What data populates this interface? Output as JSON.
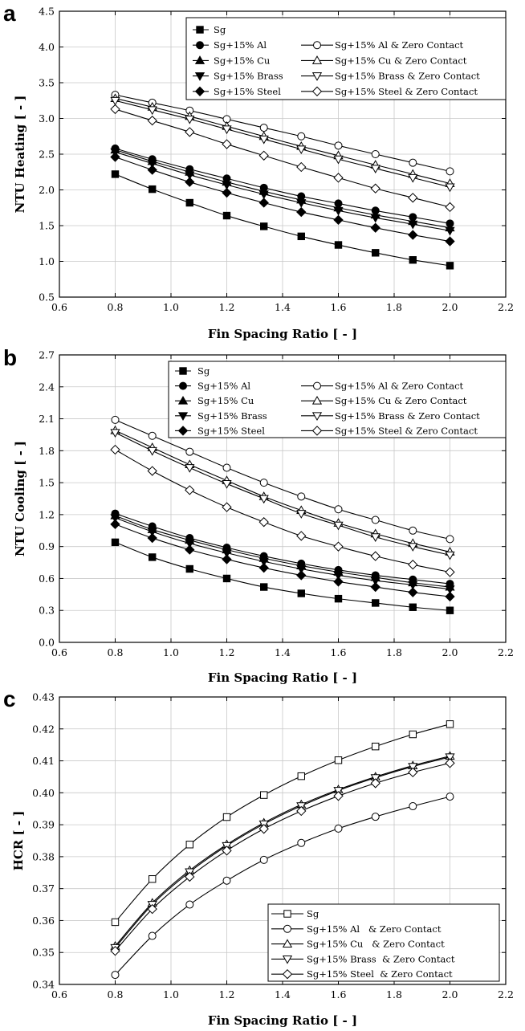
{
  "chart_data": [
    {
      "type": "line",
      "panel": "a",
      "xlabel": "Fin Spacing Ratio [ - ]",
      "ylabel": "NTU Heating [ - ]",
      "xlim": [
        0.6,
        2.2
      ],
      "ylim": [
        0.5,
        4.5
      ],
      "xticks": [
        "0.6",
        "0.8",
        "1.0",
        "1.2",
        "1.4",
        "1.6",
        "1.8",
        "2.0",
        "2.2"
      ],
      "yticks": [
        "0.5",
        "1.0",
        "1.5",
        "2.0",
        "2.5",
        "3.0",
        "3.5",
        "4.0",
        "4.5"
      ],
      "grid": true,
      "legend_position": "top-right",
      "x": [
        0.8,
        0.933,
        1.067,
        1.2,
        1.333,
        1.467,
        1.6,
        1.733,
        1.867,
        2.0
      ],
      "series": [
        {
          "name": "Sg",
          "marker": "square-filled",
          "values": [
            2.22,
            2.01,
            1.82,
            1.64,
            1.49,
            1.35,
            1.23,
            1.12,
            1.02,
            0.94
          ]
        },
        {
          "name": "Sg+15% Al",
          "marker": "circle-filled",
          "values": [
            2.58,
            2.43,
            2.29,
            2.16,
            2.03,
            1.91,
            1.81,
            1.71,
            1.62,
            1.53
          ]
        },
        {
          "name": "Sg+15% Cu",
          "marker": "triangle-up-filled",
          "values": [
            2.56,
            2.4,
            2.25,
            2.11,
            1.98,
            1.86,
            1.75,
            1.65,
            1.56,
            1.47
          ]
        },
        {
          "name": "Sg+15% Brass",
          "marker": "triangle-down-filled",
          "values": [
            2.53,
            2.37,
            2.21,
            2.07,
            1.94,
            1.82,
            1.71,
            1.61,
            1.52,
            1.43
          ]
        },
        {
          "name": "Sg+15% Steel",
          "marker": "diamond-filled",
          "values": [
            2.46,
            2.28,
            2.11,
            1.96,
            1.82,
            1.69,
            1.58,
            1.47,
            1.37,
            1.28
          ]
        },
        {
          "name": "Sg+15% Al & Zero Contact",
          "marker": "circle-open",
          "values": [
            3.33,
            3.22,
            3.11,
            2.99,
            2.87,
            2.75,
            2.62,
            2.5,
            2.38,
            2.26
          ]
        },
        {
          "name": "Sg+15% Cu & Zero Contact",
          "marker": "triangle-up-open",
          "values": [
            3.28,
            3.16,
            3.03,
            2.89,
            2.75,
            2.61,
            2.48,
            2.35,
            2.22,
            2.09
          ]
        },
        {
          "name": "Sg+15% Brass & Zero Contact",
          "marker": "triangle-down-open",
          "values": [
            3.25,
            3.12,
            2.99,
            2.85,
            2.71,
            2.57,
            2.43,
            2.3,
            2.17,
            2.04
          ]
        },
        {
          "name": "Sg+15% Steel & Zero Contact",
          "marker": "diamond-open",
          "values": [
            3.13,
            2.97,
            2.81,
            2.64,
            2.48,
            2.32,
            2.17,
            2.02,
            1.89,
            1.76
          ]
        }
      ]
    },
    {
      "type": "line",
      "panel": "b",
      "xlabel": "Fin Spacing Ratio [ - ]",
      "ylabel": "NTU Cooling [ - ]",
      "xlim": [
        0.6,
        2.2
      ],
      "ylim": [
        0.0,
        2.7
      ],
      "xticks": [
        "0.6",
        "0.8",
        "1.0",
        "1.2",
        "1.4",
        "1.6",
        "1.8",
        "2.0",
        "2.2"
      ],
      "yticks": [
        "0.0",
        "0.3",
        "0.6",
        "0.9",
        "1.2",
        "1.5",
        "1.8",
        "2.1",
        "2.4",
        "2.7"
      ],
      "grid": true,
      "legend_position": "top-right",
      "x": [
        0.8,
        0.933,
        1.067,
        1.2,
        1.333,
        1.467,
        1.6,
        1.733,
        1.867,
        2.0
      ],
      "series": [
        {
          "name": "Sg",
          "marker": "square-filled",
          "values": [
            0.94,
            0.8,
            0.69,
            0.6,
            0.52,
            0.46,
            0.41,
            0.37,
            0.33,
            0.3
          ]
        },
        {
          "name": "Sg+15% Al",
          "marker": "circle-filled",
          "values": [
            1.21,
            1.09,
            0.98,
            0.89,
            0.81,
            0.74,
            0.68,
            0.63,
            0.59,
            0.55
          ]
        },
        {
          "name": "Sg+15% Cu",
          "marker": "triangle-up-filled",
          "values": [
            1.19,
            1.06,
            0.96,
            0.87,
            0.79,
            0.72,
            0.66,
            0.61,
            0.56,
            0.52
          ]
        },
        {
          "name": "Sg+15% Brass",
          "marker": "triangle-down-filled",
          "values": [
            1.17,
            1.04,
            0.93,
            0.84,
            0.76,
            0.69,
            0.63,
            0.58,
            0.54,
            0.5
          ]
        },
        {
          "name": "Sg+15% Steel",
          "marker": "diamond-filled",
          "values": [
            1.11,
            0.98,
            0.87,
            0.78,
            0.7,
            0.63,
            0.57,
            0.52,
            0.47,
            0.43
          ]
        },
        {
          "name": "Sg+15% Al & Zero Contact",
          "marker": "circle-open",
          "values": [
            2.09,
            1.94,
            1.79,
            1.64,
            1.5,
            1.37,
            1.25,
            1.15,
            1.05,
            0.97
          ]
        },
        {
          "name": "Sg+15% Cu & Zero Contact",
          "marker": "triangle-up-open",
          "values": [
            1.99,
            1.83,
            1.67,
            1.52,
            1.37,
            1.24,
            1.12,
            1.02,
            0.93,
            0.85
          ]
        },
        {
          "name": "Sg+15% Brass & Zero Contact",
          "marker": "triangle-down-open",
          "values": [
            1.97,
            1.8,
            1.64,
            1.49,
            1.35,
            1.21,
            1.1,
            0.99,
            0.9,
            0.82
          ]
        },
        {
          "name": "Sg+15% Steel & Zero Contact",
          "marker": "diamond-open",
          "values": [
            1.81,
            1.61,
            1.43,
            1.27,
            1.13,
            1.0,
            0.9,
            0.81,
            0.73,
            0.66
          ]
        }
      ]
    },
    {
      "type": "line",
      "panel": "c",
      "xlabel": "Fin Spacing Ratio [ - ]",
      "ylabel": "HCR [ - ]",
      "xlim": [
        0.6,
        2.2
      ],
      "ylim": [
        0.34,
        0.43
      ],
      "xticks": [
        "0.6",
        "0.8",
        "1.0",
        "1.2",
        "1.4",
        "1.6",
        "1.8",
        "2.0",
        "2.2"
      ],
      "yticks": [
        "0.34",
        "0.35",
        "0.36",
        "0.37",
        "0.38",
        "0.39",
        "0.40",
        "0.41",
        "0.42",
        "0.43"
      ],
      "grid": true,
      "legend_position": "bottom-right",
      "x": [
        0.8,
        0.933,
        1.067,
        1.2,
        1.333,
        1.467,
        1.6,
        1.733,
        1.867,
        2.0
      ],
      "series": [
        {
          "name": "Sg",
          "marker": "square-open",
          "values": [
            0.3595,
            0.373,
            0.3838,
            0.3924,
            0.3993,
            0.4052,
            0.4102,
            0.4145,
            0.4183,
            0.4215
          ]
        },
        {
          "name": "Sg+15% Al   & Zero Contact",
          "marker": "circle-open",
          "values": [
            0.343,
            0.3552,
            0.365,
            0.3725,
            0.379,
            0.3843,
            0.3888,
            0.3925,
            0.3958,
            0.3988
          ]
        },
        {
          "name": "Sg+15% Cu   & Zero Contact",
          "marker": "triangle-up-open",
          "values": [
            0.352,
            0.3655,
            0.3757,
            0.3838,
            0.3906,
            0.3963,
            0.401,
            0.405,
            0.4085,
            0.4115
          ]
        },
        {
          "name": "Sg+15% Brass  & Zero Contact",
          "marker": "triangle-down-open",
          "values": [
            0.3515,
            0.365,
            0.3752,
            0.3834,
            0.3902,
            0.3959,
            0.4007,
            0.4047,
            0.4082,
            0.4112
          ]
        },
        {
          "name": "Sg+15% Steel  & Zero Contact",
          "marker": "diamond-open",
          "values": [
            0.3505,
            0.3636,
            0.3737,
            0.3819,
            0.3887,
            0.3943,
            0.399,
            0.403,
            0.4064,
            0.4093
          ]
        }
      ]
    }
  ]
}
